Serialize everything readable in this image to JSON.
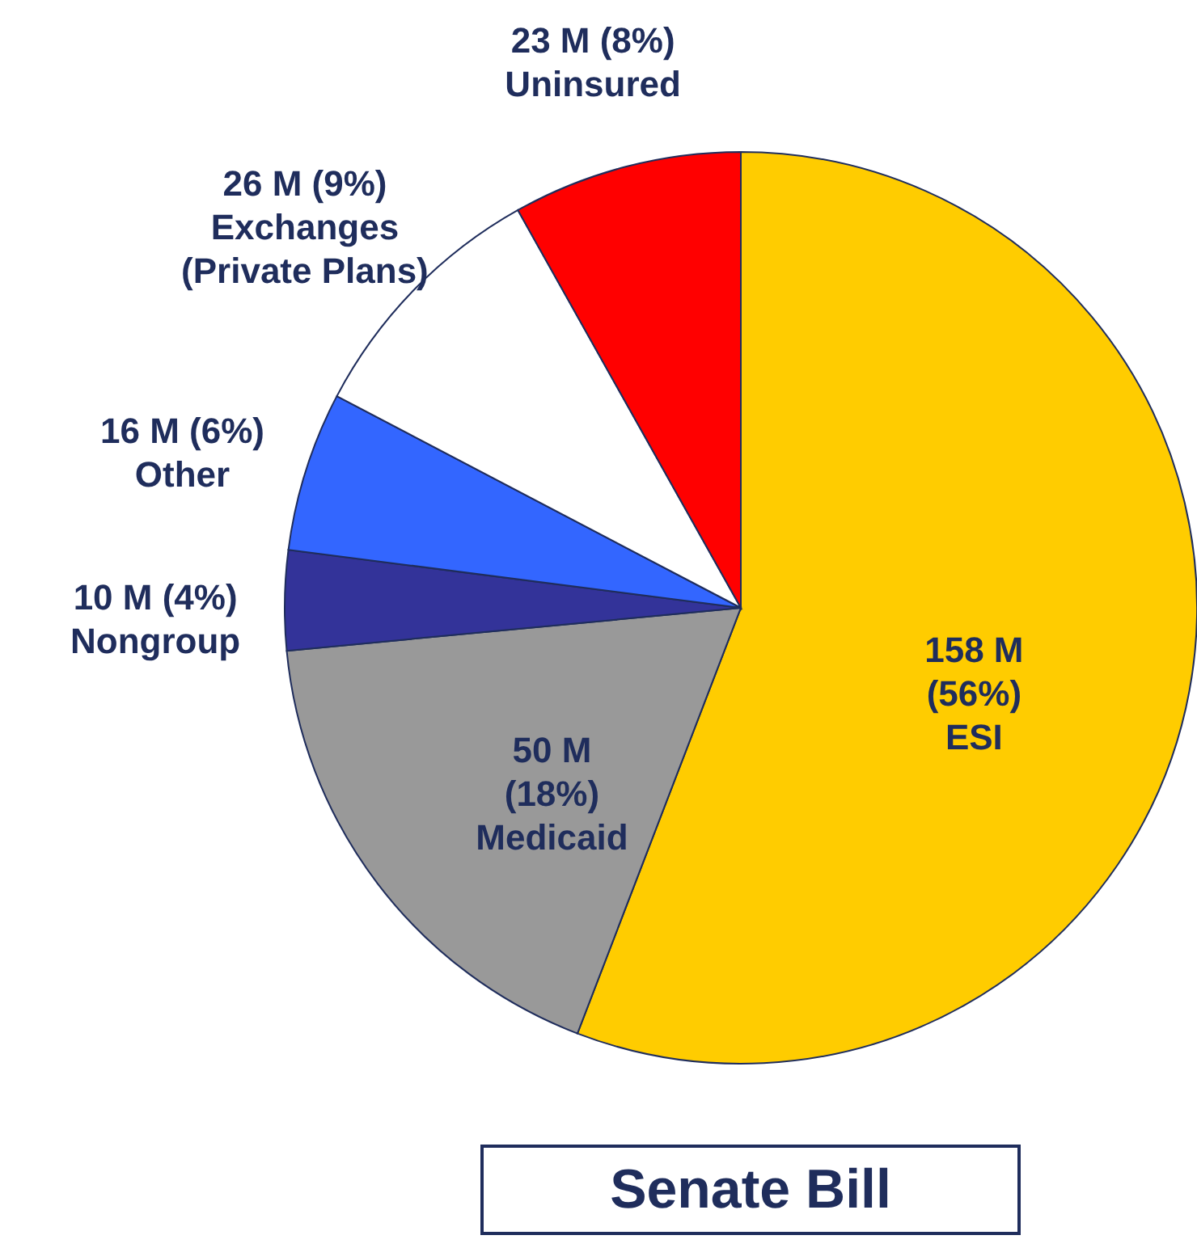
{
  "chart_data": {
    "type": "pie",
    "title": "Senate Bill",
    "categories": [
      "ESI",
      "Medicaid",
      "Nongroup",
      "Other",
      "Exchanges\n(Private Plans)",
      "Uninsured"
    ],
    "values": [
      158,
      50,
      10,
      16,
      26,
      23
    ],
    "value_labels": [
      "158 M (56%)",
      "50 M (18%)",
      "10 M (4%)",
      "16 M (6%)",
      "26 M (9%)",
      "23 M (8%)"
    ],
    "colors": [
      "#ffcc00",
      "#999999",
      "#333399",
      "#3366ff",
      "#ffffff",
      "#ff0000"
    ]
  }
}
